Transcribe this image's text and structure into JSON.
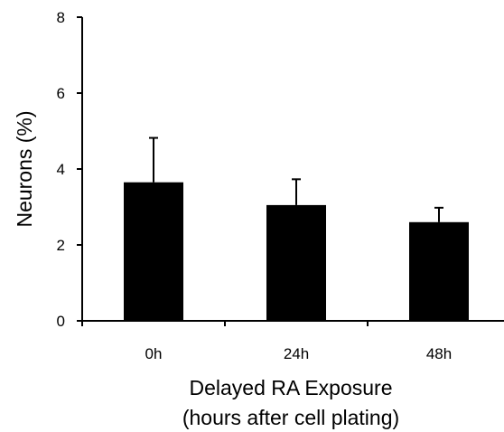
{
  "chart_data": {
    "type": "bar",
    "categories": [
      "0h",
      "24h",
      "48h"
    ],
    "values": [
      3.65,
      3.05,
      2.6
    ],
    "error_upper": [
      4.82,
      3.73,
      2.98
    ],
    "ylim": [
      0,
      8
    ],
    "yticks": [
      "0",
      "2",
      "4",
      "6",
      "8"
    ],
    "ylabel": "Neurons (%)",
    "xlabel_line1": "Delayed RA Exposure",
    "xlabel_line2": "(hours after cell plating)",
    "grid": false,
    "legend": "none",
    "bar_color": "#000000",
    "error_bar_style": "upper-only with cap"
  }
}
